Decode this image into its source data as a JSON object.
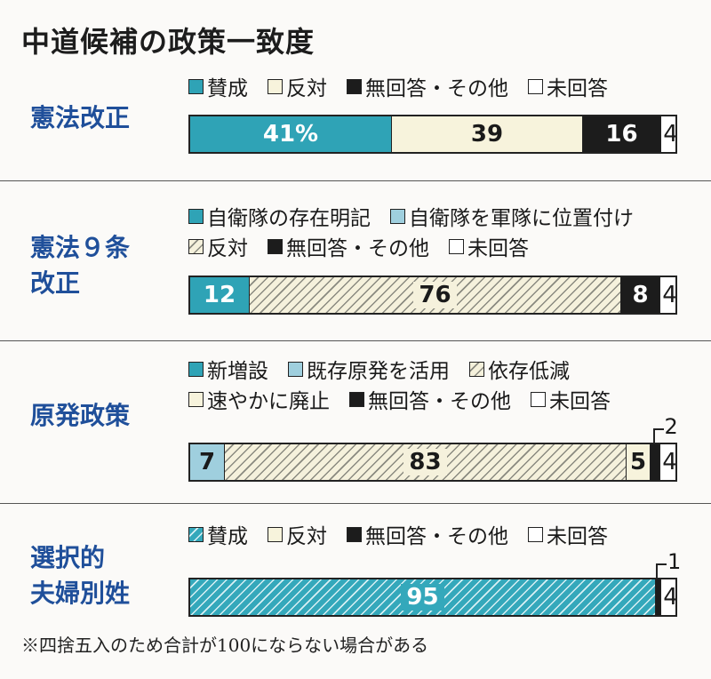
{
  "title": "中道候補の政策一致度",
  "footnote": "※四捨五入のため合計が100にならない場合がある",
  "colors": {
    "teal": "#2fa3b6",
    "light_blue": "#9fcfde",
    "cream": "#f7f3dc",
    "black": "#1c1c1c",
    "white": "#ffffff",
    "label_blue": "#1f4f9a"
  },
  "chart_data": [
    {
      "type": "bar",
      "orientation": "horizontal-stacked",
      "title": "憲法改正",
      "series": [
        {
          "name": "賛成",
          "value": 41,
          "label": "41%",
          "fill": "teal"
        },
        {
          "name": "反対",
          "value": 39,
          "label": "39",
          "fill": "cream"
        },
        {
          "name": "無回答・その他",
          "value": 16,
          "label": "16",
          "fill": "black"
        },
        {
          "name": "未回答",
          "value": 4,
          "label": "4",
          "fill": "white"
        }
      ]
    },
    {
      "type": "bar",
      "orientation": "horizontal-stacked",
      "title": "憲法９条改正",
      "series": [
        {
          "name": "自衛隊の存在明記",
          "value": 12,
          "label": "12",
          "fill": "teal"
        },
        {
          "name": "自衛隊を軍隊に位置付け",
          "value": 0,
          "label": "",
          "fill": "light_blue"
        },
        {
          "name": "反対",
          "value": 76,
          "label": "76",
          "fill": "hatch"
        },
        {
          "name": "無回答・その他",
          "value": 8,
          "label": "8",
          "fill": "black"
        },
        {
          "name": "未回答",
          "value": 4,
          "label": "4",
          "fill": "white"
        }
      ]
    },
    {
      "type": "bar",
      "orientation": "horizontal-stacked",
      "title": "原発政策",
      "series": [
        {
          "name": "新増設",
          "value": 0,
          "label": "",
          "fill": "teal"
        },
        {
          "name": "既存原発を活用",
          "value": 7,
          "label": "7",
          "fill": "light_blue"
        },
        {
          "name": "依存低減",
          "value": 83,
          "label": "83",
          "fill": "hatch"
        },
        {
          "name": "速やかに廃止",
          "value": 5,
          "label": "5",
          "fill": "cream"
        },
        {
          "name": "無回答・その他",
          "value": 2,
          "label": "2",
          "fill": "black"
        },
        {
          "name": "未回答",
          "value": 4,
          "label": "4",
          "fill": "white"
        }
      ]
    },
    {
      "type": "bar",
      "orientation": "horizontal-stacked",
      "title": "選択的夫婦別姓",
      "series": [
        {
          "name": "賛成",
          "value": 95,
          "label": "95",
          "fill": "tealhatch"
        },
        {
          "name": "反対",
          "value": 0,
          "label": "",
          "fill": "cream"
        },
        {
          "name": "無回答・その他",
          "value": 1,
          "label": "1",
          "fill": "black"
        },
        {
          "name": "未回答",
          "value": 4,
          "label": "4",
          "fill": "white"
        }
      ]
    }
  ],
  "sections": [
    {
      "label_lines": [
        "憲法改正"
      ],
      "legend_rows": [
        [
          {
            "text": "賛成",
            "fill": "teal"
          },
          {
            "text": "反対",
            "fill": "cream"
          },
          {
            "text": "無回答・その他",
            "fill": "black"
          },
          {
            "text": "未回答",
            "fill": "white"
          }
        ]
      ]
    },
    {
      "label_lines": [
        "憲法９条",
        "改正"
      ],
      "legend_rows": [
        [
          {
            "text": "自衛隊の存在明記",
            "fill": "teal"
          },
          {
            "text": "自衛隊を軍隊に位置付け",
            "fill": "light_blue"
          }
        ],
        [
          {
            "text": "反対",
            "fill": "hatch"
          },
          {
            "text": "無回答・その他",
            "fill": "black"
          },
          {
            "text": "未回答",
            "fill": "white"
          }
        ]
      ]
    },
    {
      "label_lines": [
        "原発政策"
      ],
      "legend_rows": [
        [
          {
            "text": "新増設",
            "fill": "teal"
          },
          {
            "text": "既存原発を活用",
            "fill": "light_blue"
          },
          {
            "text": "依存低減",
            "fill": "hatch"
          }
        ],
        [
          {
            "text": "速やかに廃止",
            "fill": "cream"
          },
          {
            "text": "無回答・その他",
            "fill": "black"
          },
          {
            "text": "未回答",
            "fill": "white"
          }
        ]
      ]
    },
    {
      "label_lines": [
        "選択的",
        "夫婦別姓"
      ],
      "legend_rows": [
        [
          {
            "text": "賛成",
            "fill": "tealhatch"
          },
          {
            "text": "反対",
            "fill": "cream"
          },
          {
            "text": "無回答・その他",
            "fill": "black"
          },
          {
            "text": "未回答",
            "fill": "white"
          }
        ]
      ]
    }
  ]
}
